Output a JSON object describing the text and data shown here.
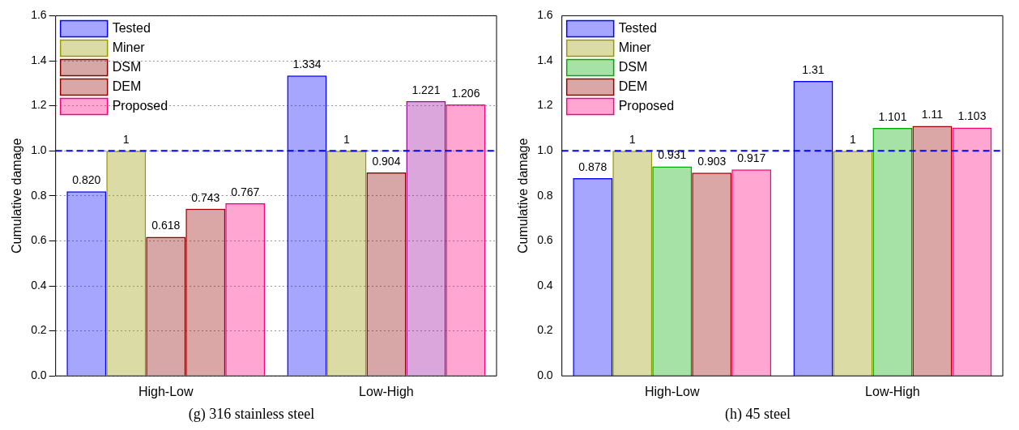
{
  "chart_data": [
    {
      "type": "bar",
      "title": "(g) 316 stainless steel",
      "ylabel": "Cumulative damage",
      "categories": [
        "High-Low",
        "Low-High"
      ],
      "series": [
        {
          "name": "Tested",
          "color": "#0000ff",
          "values": [
            0.82,
            1.334
          ],
          "value_labels": [
            "0.820",
            "1.334"
          ]
        },
        {
          "name": "Miner",
          "color": "#999900",
          "values": [
            1,
            1
          ],
          "value_labels": [
            "1",
            "1"
          ]
        },
        {
          "name": "DSM",
          "color": "#8b0000",
          "values": [
            0.618,
            0.904
          ],
          "value_labels": [
            "0.618",
            "0.904"
          ]
        },
        {
          "name": "DEM",
          "color": "#990000",
          "colors": [
            "#990000",
            "#990099"
          ],
          "values": [
            0.743,
            1.221
          ],
          "value_labels": [
            "0.743",
            "1.221"
          ]
        },
        {
          "name": "Proposed",
          "color": "#ff0080",
          "values": [
            0.767,
            1.206
          ],
          "value_labels": [
            "0.767",
            "1.206"
          ]
        }
      ],
      "ylim": [
        0,
        1.6
      ],
      "yticks": [
        {
          "value": 0,
          "label": "0.0"
        },
        {
          "value": 0.2,
          "label": "0.2"
        },
        {
          "value": 0.4,
          "label": "0.4"
        },
        {
          "value": 0.6,
          "label": "0.6"
        },
        {
          "value": 0.8,
          "label": "0.8"
        },
        {
          "value": 1,
          "label": "1.0"
        },
        {
          "value": 1.2,
          "label": "1.2"
        },
        {
          "value": 1.4,
          "label": "1.4"
        },
        {
          "value": 1.6,
          "label": "1.6"
        }
      ],
      "ref_lines": [
        {
          "axis": "y",
          "value": 1,
          "color": "#0000ff",
          "line_style": "dashed"
        }
      ],
      "grid": "y",
      "legend": "top left"
    },
    {
      "type": "bar",
      "title": "(h) 45 steel",
      "ylabel": "Cumulative damage",
      "categories": [
        "High-Low",
        "Low-High"
      ],
      "series": [
        {
          "name": "Tested",
          "color": "#0000ff",
          "values": [
            0.878,
            1.31
          ],
          "value_labels": [
            "0.878",
            "1.31"
          ]
        },
        {
          "name": "Miner",
          "color": "#999900",
          "values": [
            1,
            1
          ],
          "value_labels": [
            "1",
            "1"
          ]
        },
        {
          "name": "DSM",
          "color": "#00aa00",
          "values": [
            0.931,
            1.101
          ],
          "value_labels": [
            "0.931",
            "1.101"
          ]
        },
        {
          "name": "DEM",
          "color": "#990000",
          "values": [
            0.903,
            1.11
          ],
          "value_labels": [
            "0.903",
            "1.11"
          ]
        },
        {
          "name": "Proposed",
          "color": "#ff0080",
          "values": [
            0.917,
            1.103
          ],
          "value_labels": [
            "0.917",
            "1.103"
          ]
        }
      ],
      "ylim": [
        0,
        1.6
      ],
      "yticks": [
        {
          "value": 0,
          "label": "0.0"
        },
        {
          "value": 0.2,
          "label": "0.2"
        },
        {
          "value": 0.4,
          "label": "0.4"
        },
        {
          "value": 0.6,
          "label": "0.6"
        },
        {
          "value": 0.8,
          "label": "0.8"
        },
        {
          "value": 1,
          "label": "1.0"
        },
        {
          "value": 1.2,
          "label": "1.2"
        },
        {
          "value": 1.4,
          "label": "1.4"
        },
        {
          "value": 1.6,
          "label": "1.6"
        }
      ],
      "ref_lines": [
        {
          "axis": "y",
          "value": 1,
          "color": "#0000ff",
          "line_style": "dashed"
        }
      ],
      "legend": "top left"
    }
  ]
}
